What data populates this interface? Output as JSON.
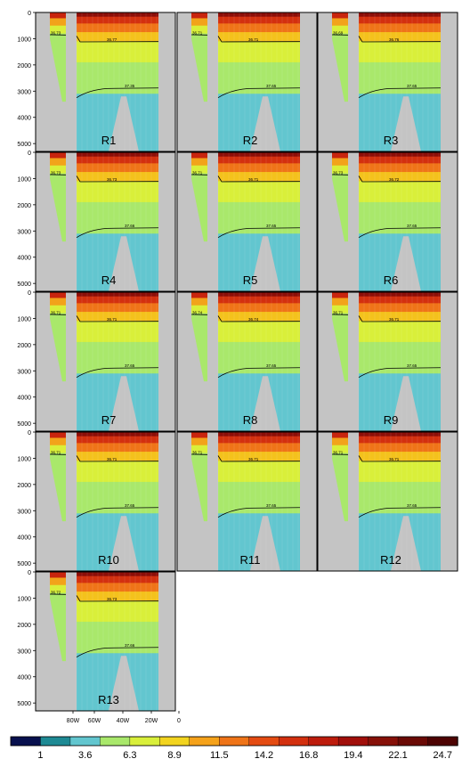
{
  "chart_data": {
    "type": "heatmap",
    "panels": [
      {
        "label": "R1",
        "contour_labels": [
          "36.73",
          "36.77",
          "37.35"
        ]
      },
      {
        "label": "R2",
        "contour_labels": [
          "36.71",
          "36.71",
          "37.65"
        ]
      },
      {
        "label": "R3",
        "contour_labels": [
          "36.69",
          "36.76",
          "37.65"
        ]
      },
      {
        "label": "R4",
        "contour_labels": [
          "36.73",
          "36.73",
          "37.66"
        ]
      },
      {
        "label": "R5",
        "contour_labels": [
          "36.71",
          "36.71",
          "37.65"
        ]
      },
      {
        "label": "R6",
        "contour_labels": [
          "36.73",
          "36.72",
          "37.65"
        ]
      },
      {
        "label": "R7",
        "contour_labels": [
          "36.71",
          "36.71",
          "37.65"
        ]
      },
      {
        "label": "R8",
        "contour_labels": [
          "36.74",
          "36.74",
          "37.65"
        ]
      },
      {
        "label": "R9",
        "contour_labels": [
          "36.71",
          "36.71",
          "37.65"
        ]
      },
      {
        "label": "R10",
        "contour_labels": [
          "36.71",
          "36.71",
          "37.65"
        ]
      },
      {
        "label": "R11",
        "contour_labels": [
          "36.71",
          "36.71",
          "37.65"
        ]
      },
      {
        "label": "R12",
        "contour_labels": [
          "36.71",
          "36.71",
          "37.65"
        ]
      },
      {
        "label": "R13",
        "contour_labels": [
          "36.72",
          "36.73",
          "37.66"
        ]
      }
    ],
    "y_ticks": [
      "0",
      "1000",
      "2000",
      "3000",
      "4000",
      "5000"
    ],
    "x_ticks": [
      "80W",
      "60W",
      "40W",
      "20W",
      "0"
    ],
    "colorbar": {
      "tick_labels": [
        "1",
        "3.6",
        "6.3",
        "8.9",
        "11.5",
        "14.2",
        "16.8",
        "19.4",
        "22.1",
        "24.7"
      ],
      "colors": [
        "#08104e",
        "#1e8a94",
        "#62c6cf",
        "#a9e86b",
        "#d9ef3a",
        "#f2d41f",
        "#f5a21a",
        "#ef7418",
        "#e44b12",
        "#d3300f",
        "#bd1c0c",
        "#a10f0a",
        "#861008",
        "#6a0a05",
        "#4d0302"
      ]
    },
    "colors": {
      "land": "#c4c4c4",
      "deep": "#62c6cf",
      "mid": "#a9e86b",
      "upper": "#d9ef3a",
      "warm_top": "#8c0e08"
    }
  }
}
